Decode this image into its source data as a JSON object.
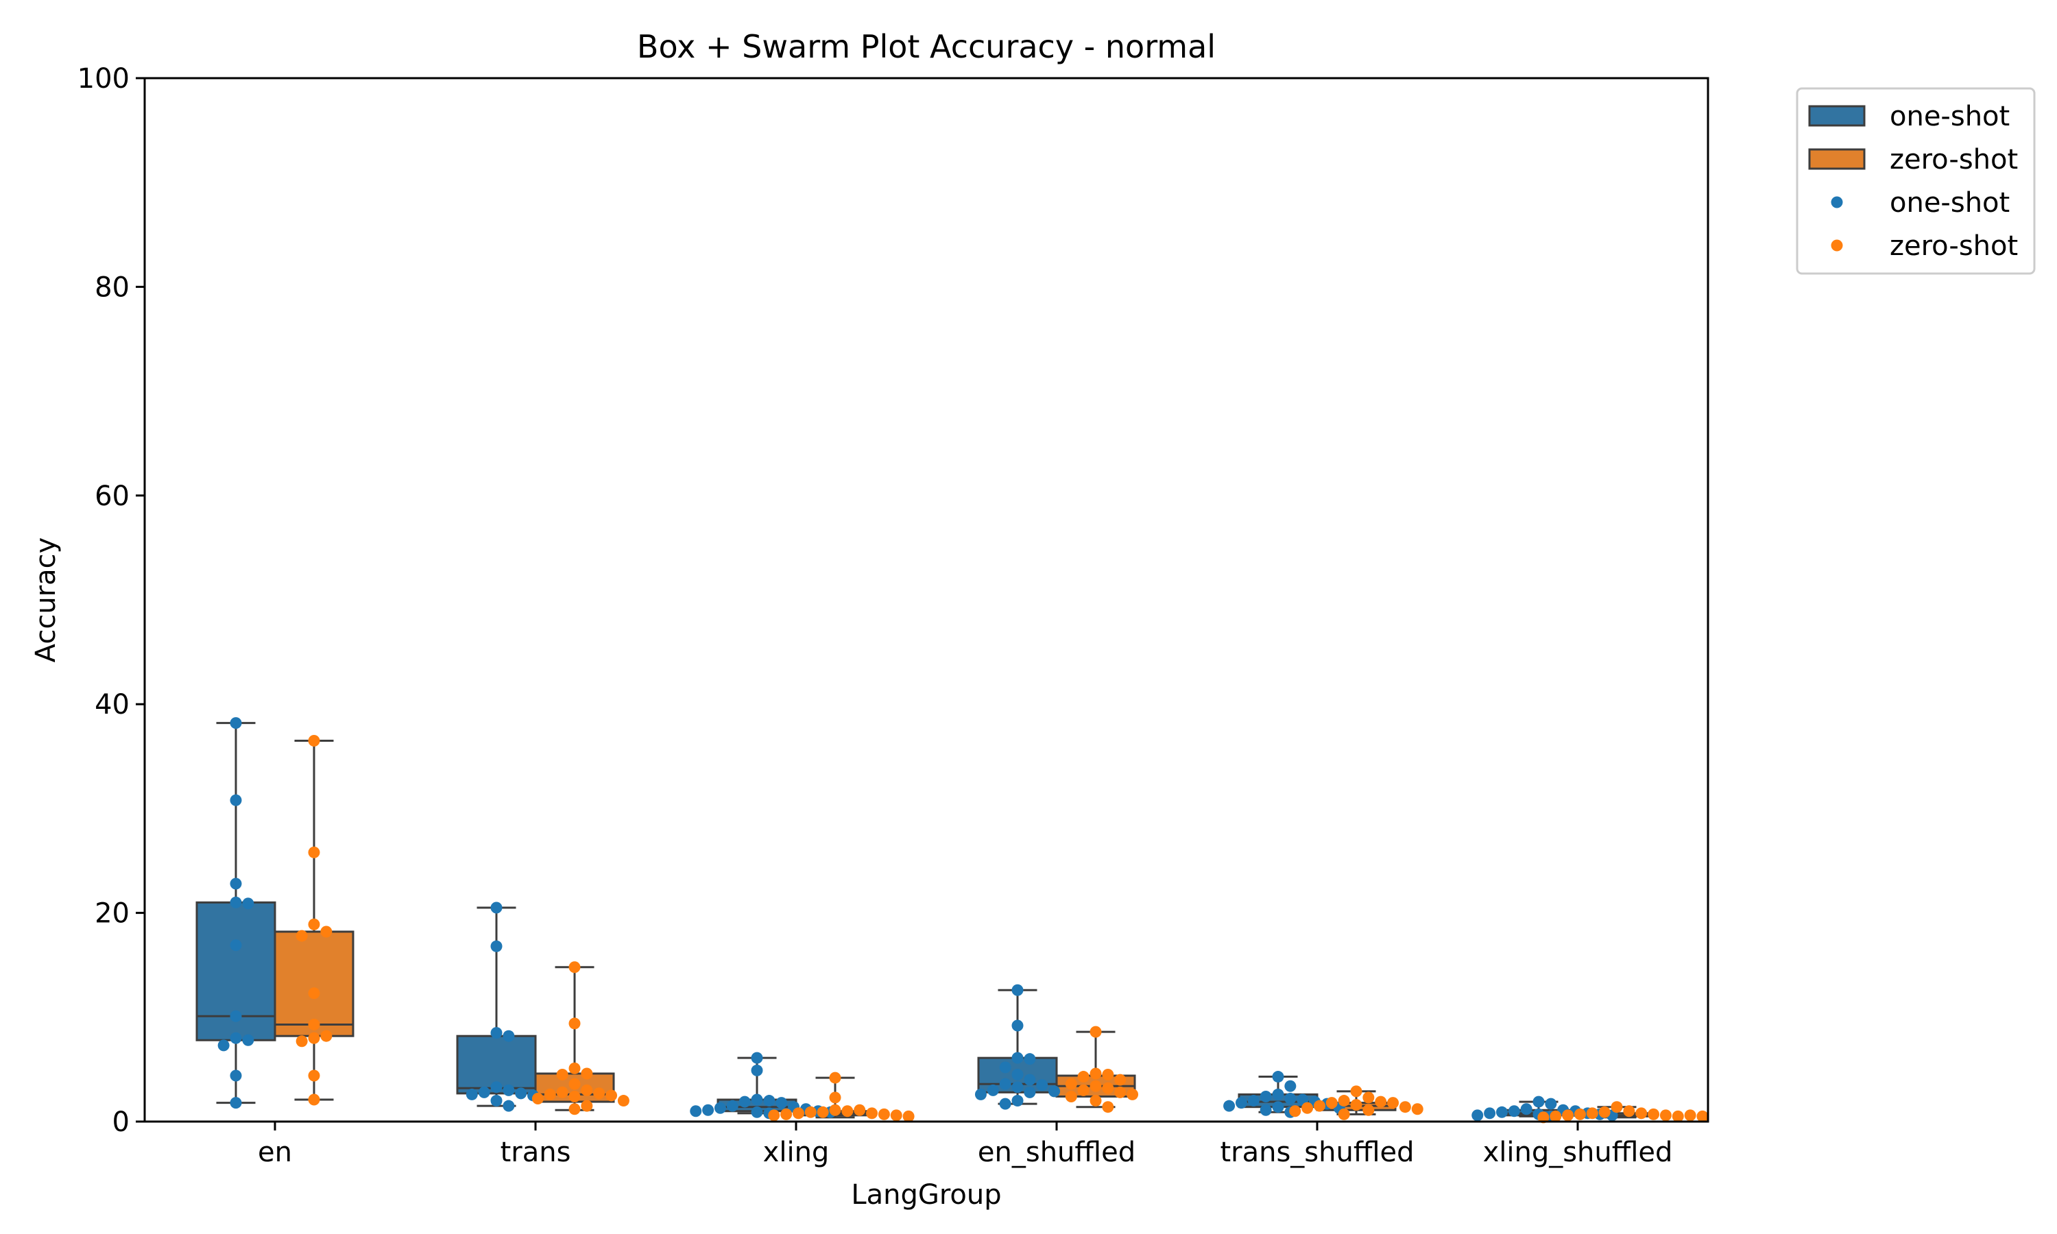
{
  "chart_data": {
    "type": "box+swarm",
    "title": "Box + Swarm Plot Accuracy - normal",
    "xlabel": "LangGroup",
    "ylabel": "Accuracy",
    "ylim": [
      0,
      100
    ],
    "yticks": [
      0,
      20,
      40,
      60,
      80,
      100
    ],
    "categories": [
      "en",
      "trans",
      "xling",
      "en_shuffled",
      "trans_shuffled",
      "xling_shuffled"
    ],
    "legend": {
      "placement": "outside-top-right",
      "entries": [
        {
          "label": "one-shot",
          "kind": "box"
        },
        {
          "label": "zero-shot",
          "kind": "box"
        },
        {
          "label": "one-shot",
          "kind": "point"
        },
        {
          "label": "zero-shot",
          "kind": "point"
        }
      ]
    },
    "series": [
      {
        "name": "one-shot",
        "box_color": "#3274a1",
        "point_color": "#1f77b4",
        "boxes": [
          {
            "whisker_low": 1.8,
            "q1": 7.8,
            "median": 10.1,
            "q3": 21.0,
            "whisker_high": 38.2
          },
          {
            "whisker_low": 1.5,
            "q1": 2.7,
            "median": 3.2,
            "q3": 8.2,
            "whisker_high": 20.5
          },
          {
            "whisker_low": 0.8,
            "q1": 1.0,
            "median": 1.4,
            "q3": 2.1,
            "whisker_high": 6.1
          },
          {
            "whisker_low": 1.7,
            "q1": 2.8,
            "median": 3.6,
            "q3": 6.1,
            "whisker_high": 12.6
          },
          {
            "whisker_low": 0.9,
            "q1": 1.4,
            "median": 1.9,
            "q3": 2.6,
            "whisker_high": 4.3
          },
          {
            "whisker_low": 0.5,
            "q1": 0.6,
            "median": 0.8,
            "q3": 1.1,
            "whisker_high": 1.9
          }
        ],
        "points": [
          [
            38.2,
            30.8,
            22.8,
            21.0,
            20.9,
            16.9,
            10.1,
            8.0,
            7.8,
            7.3,
            4.4,
            1.8
          ],
          [
            20.5,
            16.8,
            8.5,
            8.2,
            3.3,
            3.0,
            2.8,
            2.7,
            2.6,
            2.5,
            2.0,
            1.5
          ],
          [
            6.1,
            4.9,
            2.1,
            2.0,
            1.9,
            1.8,
            1.5,
            1.4,
            1.3,
            1.2,
            1.1,
            1.0,
            1.0,
            0.9,
            0.9,
            0.8
          ],
          [
            12.6,
            9.2,
            6.1,
            6.0,
            5.2,
            4.5,
            4.0,
            3.6,
            3.5,
            3.3,
            3.0,
            2.9,
            2.8,
            2.6,
            2.0,
            1.7
          ],
          [
            4.3,
            3.4,
            2.6,
            2.4,
            2.2,
            2.1,
            2.0,
            1.9,
            1.8,
            1.7,
            1.5,
            1.4,
            1.3,
            1.1,
            0.9
          ],
          [
            1.9,
            1.7,
            1.2,
            1.1,
            1.0,
            1.0,
            0.9,
            0.8,
            0.8,
            0.7,
            0.7,
            0.6,
            0.6,
            0.5
          ]
        ]
      },
      {
        "name": "zero-shot",
        "box_color": "#e1812c",
        "point_color": "#ff7f0e",
        "boxes": [
          {
            "whisker_low": 2.1,
            "q1": 8.2,
            "median": 9.3,
            "q3": 18.2,
            "whisker_high": 36.5
          },
          {
            "whisker_low": 1.1,
            "q1": 1.9,
            "median": 2.6,
            "q3": 4.6,
            "whisker_high": 14.8
          },
          {
            "whisker_low": 0.4,
            "q1": 0.6,
            "median": 0.8,
            "q3": 1.0,
            "whisker_high": 4.2
          },
          {
            "whisker_low": 1.4,
            "q1": 2.4,
            "median": 3.4,
            "q3": 4.4,
            "whisker_high": 8.6
          },
          {
            "whisker_low": 0.7,
            "q1": 1.1,
            "median": 1.5,
            "q3": 1.8,
            "whisker_high": 2.9
          },
          {
            "whisker_low": 0.4,
            "q1": 0.5,
            "median": 0.6,
            "q3": 0.8,
            "whisker_high": 1.4
          }
        ],
        "points": [
          [
            36.5,
            25.8,
            18.9,
            18.2,
            17.8,
            12.3,
            9.3,
            8.2,
            8.0,
            7.7,
            4.4,
            2.1
          ],
          [
            14.8,
            9.4,
            5.1,
            4.6,
            4.5,
            3.6,
            3.0,
            2.8,
            2.7,
            2.6,
            2.5,
            2.4,
            2.2,
            2.0,
            1.5,
            1.2
          ],
          [
            4.2,
            2.3,
            1.1,
            1.1,
            1.0,
            0.9,
            0.9,
            0.8,
            0.8,
            0.7,
            0.7,
            0.6,
            0.6,
            0.5
          ],
          [
            8.6,
            4.6,
            4.5,
            4.3,
            4.0,
            3.6,
            3.4,
            3.2,
            3.0,
            2.8,
            2.6,
            2.4,
            2.0,
            1.4
          ],
          [
            2.9,
            2.3,
            2.0,
            1.9,
            1.8,
            1.8,
            1.6,
            1.5,
            1.4,
            1.3,
            1.2,
            1.1,
            1.0,
            0.7
          ],
          [
            1.4,
            1.0,
            0.9,
            0.8,
            0.8,
            0.7,
            0.7,
            0.6,
            0.6,
            0.6,
            0.5,
            0.5,
            0.5,
            0.4
          ]
        ]
      }
    ]
  }
}
